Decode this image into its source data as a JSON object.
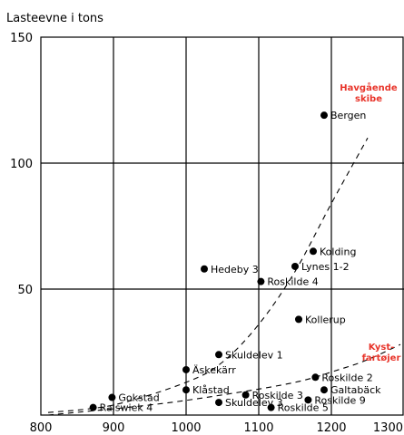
{
  "chart_data": {
    "type": "scatter",
    "ylabel": "Lasteevne i tons",
    "xlim": [
      800,
      1300
    ],
    "ylim": [
      0,
      150
    ],
    "x_ticks": [
      800,
      900,
      1000,
      1100,
      1200,
      1300
    ],
    "y_ticks": [
      50,
      100,
      150
    ],
    "grid": true,
    "points": [
      {
        "label": "Bergen",
        "x": 1190,
        "y": 119
      },
      {
        "label": "Kolding",
        "x": 1175,
        "y": 65
      },
      {
        "label": "Lynes 1-2",
        "x": 1150,
        "y": 59
      },
      {
        "label": "Hedeby 3",
        "x": 1025,
        "y": 58
      },
      {
        "label": "Roskilde 4",
        "x": 1103,
        "y": 53
      },
      {
        "label": "Kollerup",
        "x": 1155,
        "y": 38
      },
      {
        "label": "Skuldelev 1",
        "x": 1045,
        "y": 24
      },
      {
        "label": "Äskekärr",
        "x": 1000,
        "y": 18
      },
      {
        "label": "Roskilde 2",
        "x": 1178,
        "y": 15
      },
      {
        "label": "Klåstad",
        "x": 1000,
        "y": 10
      },
      {
        "label": "Galtabäck",
        "x": 1190,
        "y": 10
      },
      {
        "label": "Gokstad",
        "x": 898,
        "y": 7
      },
      {
        "label": "Roskilde 3",
        "x": 1082,
        "y": 8
      },
      {
        "label": "Roskilde 9",
        "x": 1168,
        "y": 6
      },
      {
        "label": "Skuldelev 3",
        "x": 1045,
        "y": 5
      },
      {
        "label": "Roskilde 5",
        "x": 1117,
        "y": 3
      },
      {
        "label": "Ralswiek 4",
        "x": 872,
        "y": 3
      }
    ],
    "curves": [
      {
        "name": "Havgående skibe",
        "points": [
          [
            810,
            1
          ],
          [
            900,
            4
          ],
          [
            1000,
            13
          ],
          [
            1050,
            21
          ],
          [
            1100,
            36
          ],
          [
            1150,
            57
          ],
          [
            1200,
            84
          ],
          [
            1250,
            110
          ]
        ]
      },
      {
        "name": "Kystfartøjer",
        "points": [
          [
            810,
            0
          ],
          [
            950,
            4
          ],
          [
            1050,
            8
          ],
          [
            1150,
            13
          ],
          [
            1210,
            18
          ],
          [
            1250,
            22
          ],
          [
            1295,
            28
          ]
        ]
      }
    ],
    "annotations": [
      {
        "text_lines": [
          "Havgående",
          "skibe"
        ],
        "color": "#e8352b"
      },
      {
        "text_lines": [
          "Kyst-",
          "fartøjer"
        ],
        "color": "#e8352b"
      }
    ]
  }
}
